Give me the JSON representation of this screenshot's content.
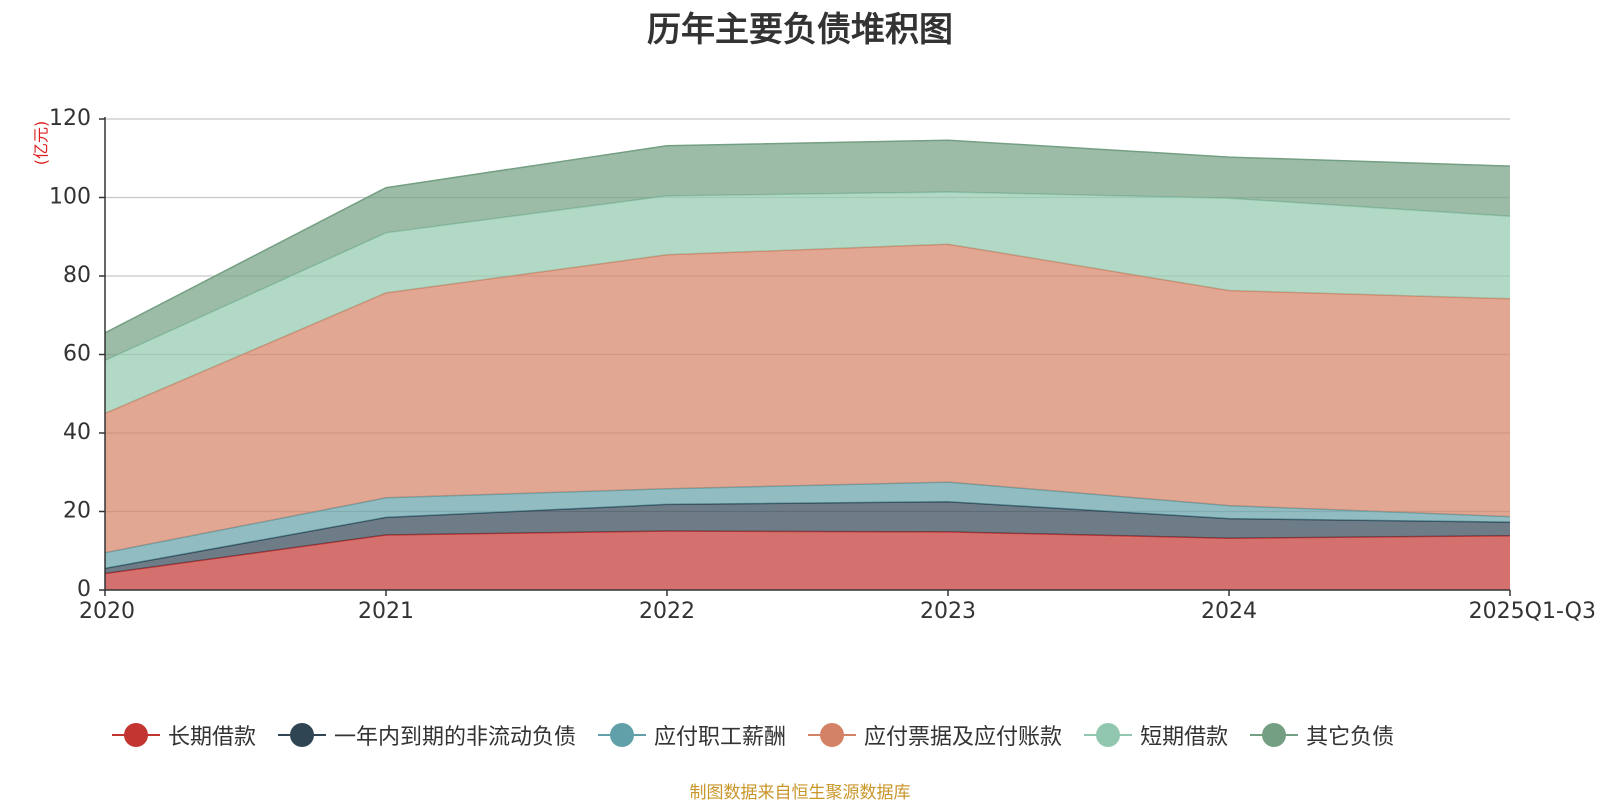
{
  "chart_data": {
    "type": "area",
    "stacked": true,
    "title": "历年主要负债堆积图",
    "ylabel": "(亿元)",
    "xlabel": "",
    "ylim": [
      0,
      120
    ],
    "yticks": [
      0,
      20,
      40,
      60,
      80,
      100,
      120
    ],
    "grid": true,
    "legend_position": "bottom",
    "categories": [
      "2020",
      "2021",
      "2022",
      "2023",
      "2024",
      "2025Q1-Q3"
    ],
    "series": [
      {
        "name": "长期借款",
        "color": "#c23531",
        "values": [
          4.2,
          14.0,
          15.0,
          14.8,
          13.2,
          13.8
        ]
      },
      {
        "name": "一年内到期的非流动负债",
        "color": "#2f4554",
        "values": [
          1.3,
          4.5,
          6.8,
          7.7,
          5.0,
          3.5
        ]
      },
      {
        "name": "应付职工薪酬",
        "color": "#61a0a8",
        "values": [
          4.0,
          5.0,
          4.0,
          5.0,
          3.3,
          1.4
        ]
      },
      {
        "name": "应付票据及应付账款",
        "color": "#d48265",
        "values": [
          35.5,
          52.2,
          59.6,
          60.6,
          54.8,
          55.5
        ]
      },
      {
        "name": "短期借款",
        "color": "#91c7ae",
        "values": [
          13.5,
          15.3,
          15.0,
          13.3,
          23.5,
          21.0
        ]
      },
      {
        "name": "其它负债",
        "color": "#749f83",
        "values": [
          7.0,
          11.5,
          12.8,
          13.2,
          10.5,
          12.8
        ]
      }
    ]
  },
  "source_note": "制图数据来自恒生聚源数据库"
}
